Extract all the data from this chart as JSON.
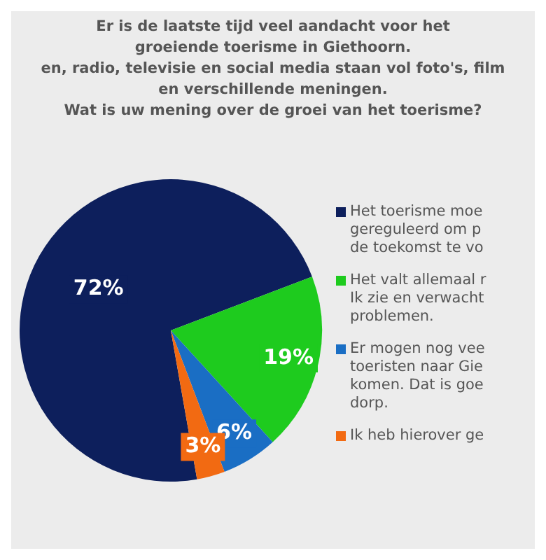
{
  "chart_data": {
    "type": "pie",
    "title": "Er is de laatste tijd veel aandacht voor het\ngroeiende toerisme in Giethoorn.\nen, radio, televisie en social media staan vol foto's, film\nen verschillende meningen.\nWat is uw mening over de groei van het toerisme?",
    "categories": [
      "Het toerisme moe\ngereguleerd om p\nde toekomst te vo",
      "Het valt allemaal r\nIk zie en verwacht\nproblemen.",
      "Er mogen nog vee\ntoeristen naar Gie\nkomen. Dat is goe\ndorp.",
      "Ik heb hierover ge"
    ],
    "values": [
      72,
      19,
      6,
      3
    ],
    "colors": [
      "#0d1f5c",
      "#1ecb1e",
      "#1a6ec4",
      "#f26a12"
    ],
    "value_labels": [
      "72%",
      "19%",
      "6%",
      "3%"
    ],
    "legend": "right"
  }
}
